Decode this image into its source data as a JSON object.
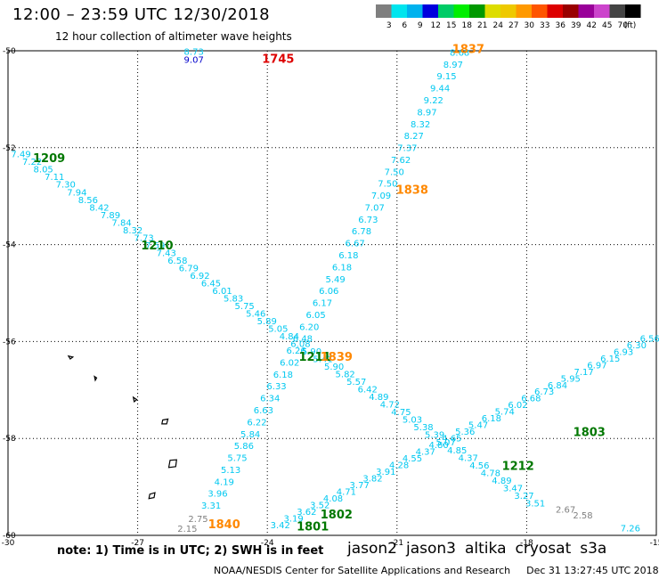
{
  "header": {
    "title": "12:00 – 23:59 UTC 12/30/2018",
    "subtitle": "12 hour collection of altimeter wave heights"
  },
  "legend": {
    "unit": "(ft)",
    "items": [
      {
        "label": "3",
        "color": "#7f7f7f"
      },
      {
        "label": "6",
        "color": "#00e5ee"
      },
      {
        "label": "9",
        "color": "#00b2ee"
      },
      {
        "label": "12",
        "color": "#0000dd"
      },
      {
        "label": "15",
        "color": "#00cc66"
      },
      {
        "label": "18",
        "color": "#00ee00"
      },
      {
        "label": "21",
        "color": "#009900"
      },
      {
        "label": "24",
        "color": "#dddd00"
      },
      {
        "label": "27",
        "color": "#eec900"
      },
      {
        "label": "30",
        "color": "#ff9900"
      },
      {
        "label": "33",
        "color": "#ff5500"
      },
      {
        "label": "36",
        "color": "#dd0000"
      },
      {
        "label": "39",
        "color": "#990000"
      },
      {
        "label": "42",
        "color": "#990099"
      },
      {
        "label": "45",
        "color": "#cc44cc"
      },
      {
        "label": "70",
        "color": "#444444"
      },
      {
        "label": "",
        "color": "#000000"
      }
    ]
  },
  "map": {
    "lon_range": [
      -30,
      -15
    ],
    "lat_range": [
      -60,
      -50
    ],
    "lon_ticks": [
      {
        "value": -30,
        "label": "-30"
      },
      {
        "value": -27,
        "label": "-27"
      },
      {
        "value": -24,
        "label": "-24"
      },
      {
        "value": -21,
        "label": "-21"
      },
      {
        "value": -18,
        "label": "-18"
      },
      {
        "value": -15,
        "label": "-15"
      }
    ],
    "lat_ticks": [
      {
        "value": -50,
        "label": "-50"
      },
      {
        "value": -52,
        "label": "-52"
      },
      {
        "value": -54,
        "label": "-54"
      },
      {
        "value": -56,
        "label": "-56"
      },
      {
        "value": -58,
        "label": "-58"
      },
      {
        "value": -60,
        "label": "-60"
      }
    ],
    "grid": true,
    "colors": {
      "cyan": "#00c8f0",
      "gray": "#808080",
      "blue": "#0000cc"
    },
    "tracks": [
      {
        "id": "track-nw-se",
        "from": [
          -29.7,
          -52.2
        ],
        "to": [
          -17.8,
          -59.4
        ],
        "values": [
          "7.49",
          "7.22",
          "8.05",
          "7.11",
          "7.30",
          "7.94",
          "8.56",
          "8.42",
          "7.89",
          "7.84",
          "8.32",
          "7.73",
          "7.59",
          "7.43",
          "6.58",
          "6.79",
          "6.92",
          "6.45",
          "6.01",
          "5.83",
          "5.75",
          "5.46",
          "5.89",
          "5.05",
          "4.84",
          "6.08",
          "5.90",
          "5.41",
          "5.90",
          "5.82",
          "5.57",
          "6.42",
          "4.89",
          "4.72",
          "4.75",
          "5.03",
          "5.38",
          "5.39",
          "5.07",
          "4.85",
          "4.37",
          "4.56",
          "4.78",
          "4.89",
          "3.47",
          "3.27",
          "3.51"
        ],
        "tail": [
          {
            "lon": -17.1,
            "lat": -59.53,
            "value": "2.67"
          },
          {
            "lon": -16.7,
            "lat": -59.65,
            "value": "2.58"
          }
        ]
      },
      {
        "id": "track-sw-ne-left",
        "from": [
          -25.3,
          -59.45
        ],
        "to": [
          -19.55,
          -50.1
        ],
        "values": [
          "3.31",
          "3.96",
          "4.19",
          "5.13",
          "5.75",
          "5.86",
          "5.84",
          "6.22",
          "6.63",
          "6.34",
          "6.33",
          "6.18",
          "6.02",
          "6.26",
          "6.48",
          "6.20",
          "6.05",
          "6.17",
          "6.06",
          "5.49",
          "6.18",
          "6.18",
          "6.67",
          "6.78",
          "6.73",
          "7.07",
          "7.09",
          "7.50",
          "7.50",
          "7.62",
          "7.37",
          "8.27",
          "8.32",
          "8.97",
          "9.22",
          "9.44",
          "9.15",
          "8.97",
          "8.68"
        ],
        "tail": [
          {
            "lon": -25.6,
            "lat": -59.72,
            "value": "2.75"
          },
          {
            "lon": -25.85,
            "lat": -59.93,
            "value": "2.15"
          }
        ]
      },
      {
        "id": "track-sw-ne-right",
        "from": [
          -23.7,
          -59.85
        ],
        "to": [
          -15.15,
          -56.0
        ],
        "values": [
          "3.42",
          "3.19",
          "3.62",
          "3.52",
          "4.08",
          "4.71",
          "3.77",
          "3.82",
          "3.91",
          "4.28",
          "4.55",
          "4.37",
          "4.80",
          "4.65",
          "5.36",
          "5.47",
          "6.18",
          "5.74",
          "6.02",
          "6.68",
          "6.73",
          "6.84",
          "5.95",
          "7.17",
          "6.97",
          "6.15",
          "6.93",
          "6.30",
          "6.56"
        ],
        "tail": []
      }
    ],
    "markers": [
      {
        "lon": -25.7,
        "lat": -50.08,
        "value": "8.73",
        "color": "cyan"
      },
      {
        "lon": -25.7,
        "lat": -50.25,
        "value": "9.07",
        "color": "blue"
      },
      {
        "lon": -15.6,
        "lat": -59.92,
        "value": "7.26",
        "color": "cyan"
      }
    ],
    "pass_labels": [
      {
        "lon": -29.05,
        "lat": -52.3,
        "text": "1209",
        "color": "#007700"
      },
      {
        "lon": -26.55,
        "lat": -54.1,
        "text": "1210",
        "color": "#007700"
      },
      {
        "lon": -22.9,
        "lat": -56.4,
        "text": "1211",
        "color": "#007700"
      },
      {
        "lon": -18.2,
        "lat": -58.65,
        "text": "1212",
        "color": "#007700"
      },
      {
        "lon": -16.55,
        "lat": -57.95,
        "text": "1803",
        "color": "#007700"
      },
      {
        "lon": -22.4,
        "lat": -59.65,
        "text": "1802",
        "color": "#007700"
      },
      {
        "lon": -22.95,
        "lat": -59.9,
        "text": "1801",
        "color": "#007700"
      },
      {
        "lon": -23.75,
        "lat": -50.25,
        "text": "1745",
        "color": "#dd0000"
      },
      {
        "lon": -19.35,
        "lat": -50.05,
        "text": "1837",
        "color": "#ff8800"
      },
      {
        "lon": -20.65,
        "lat": -52.95,
        "text": "1838",
        "color": "#ff8800"
      },
      {
        "lon": -22.4,
        "lat": -56.4,
        "text": "1839",
        "color": "#ff8800"
      },
      {
        "lon": -25.0,
        "lat": -59.85,
        "text": "1840",
        "color": "#ff8800"
      }
    ],
    "islands": [
      [
        [
          -28.6,
          -56.3
        ],
        [
          -28.5,
          -56.32
        ],
        [
          -28.56,
          -56.36
        ]
      ],
      [
        [
          -28.0,
          -56.72
        ],
        [
          -27.95,
          -56.75
        ],
        [
          -27.98,
          -56.8
        ]
      ],
      [
        [
          -27.1,
          -57.15
        ],
        [
          -27.02,
          -57.2
        ],
        [
          -27.08,
          -57.24
        ]
      ],
      [
        [
          -26.42,
          -57.62
        ],
        [
          -26.3,
          -57.6
        ],
        [
          -26.33,
          -57.7
        ],
        [
          -26.44,
          -57.7
        ]
      ],
      [
        [
          -26.25,
          -58.45
        ],
        [
          -26.1,
          -58.44
        ],
        [
          -26.12,
          -58.58
        ],
        [
          -26.28,
          -58.6
        ]
      ],
      [
        [
          -26.72,
          -59.15
        ],
        [
          -26.6,
          -59.12
        ],
        [
          -26.62,
          -59.22
        ],
        [
          -26.74,
          -59.24
        ]
      ]
    ]
  },
  "footer": {
    "note": "note: 1) Time is in UTC; 2) SWH is in feet",
    "satellites": [
      {
        "name": "jason2",
        "color": "#0000dd"
      },
      {
        "name": "jason3",
        "color": "#009900"
      },
      {
        "name": "altika",
        "color": "#ff9900"
      },
      {
        "name": "cryosat",
        "color": "#dd0000"
      },
      {
        "name": "s3a",
        "color": "#990000"
      }
    ],
    "credit": "NOAA/NESDIS Center for Satellite Applications and Research",
    "timestamp": "Dec 31 13:27:45 UTC 2018"
  }
}
